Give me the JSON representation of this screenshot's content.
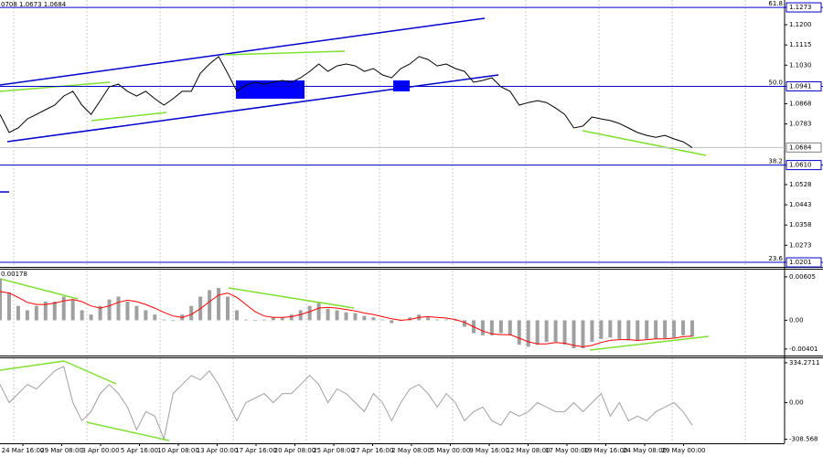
{
  "header_text": "0708 1.0673 1.0684",
  "chart_data": [
    {
      "type": "line",
      "name": "price",
      "values": [
        1.0823,
        1.0747,
        1.0766,
        1.0804,
        1.0823,
        1.0843,
        1.0862,
        1.09,
        1.092,
        1.0862,
        1.0823,
        1.0881,
        1.0939,
        1.095,
        1.092,
        1.09,
        1.092,
        1.0889,
        1.0862,
        1.0889,
        1.092,
        1.092,
        1.0996,
        1.1035,
        1.1066,
        1.0996,
        1.092,
        1.0946,
        1.0958,
        1.095,
        1.0958,
        1.0966,
        1.0958,
        1.0977,
        1.1004,
        1.1035,
        1.1004,
        1.1027,
        1.1035,
        1.1027,
        1.1004,
        1.1016,
        1.0989,
        1.0977,
        1.1016,
        1.1035,
        1.1066,
        1.1054,
        1.1027,
        1.1035,
        1.1016,
        1.1004,
        1.0958,
        1.0966,
        1.0977,
        1.0939,
        1.092,
        1.0862,
        1.0873,
        1.0881,
        1.0873,
        1.085,
        1.0823,
        1.0766,
        1.0774,
        1.0812,
        1.0804,
        1.0797,
        1.0785,
        1.0766,
        1.0747,
        1.0735,
        1.0727,
        1.0735,
        1.072,
        1.0708,
        1.0684
      ],
      "color": "#000000",
      "ylim": [
        1.0182,
        1.1304
      ],
      "yticks": [
        {
          "value": 1.12,
          "label": "1.1200"
        },
        1.1115,
        {
          "value": 1.103,
          "label": "1.1030"
        },
        1.0868,
        1.0783,
        1.0528,
        1.0443,
        1.0358,
        1.0273
      ],
      "levels": [
        {
          "ratio": "61.8",
          "value": 1.1273,
          "label": "1.1273"
        },
        {
          "ratio": "50.0",
          "value": 1.0941,
          "label": "1.0941"
        },
        {
          "ratio": "38.2",
          "value": 1.061,
          "label": "1.0610"
        },
        {
          "ratio": "23.6",
          "value": 1.0201,
          "label": "1.0201"
        }
      ],
      "level_color": "#0000cc",
      "current": {
        "value": 1.0684,
        "label": "1.0684"
      },
      "xtick_labels": [
        "24 Mar 16:00",
        "29 Mar 08:00",
        "3 Apr 00:00",
        "5 Apr 16:00",
        "10 Apr 08:00",
        "13 Apr 00:00",
        "17 Apr 16:00",
        "20 Apr 08:00",
        "25 Apr 08:00",
        "27 Apr 16:00",
        "2 May 08:00",
        "5 May 00:00",
        "9 May 16:00",
        "12 May 08:00",
        "17 May 00:00",
        "19 May 16:00",
        "24 May 08:00",
        "29 May 00:00"
      ]
    },
    {
      "type": "macd",
      "label": "0.00178",
      "series": [
        {
          "kind": "histogram",
          "color": "#a0a0a0",
          "values": [
            0.0058,
            0.0039,
            0.002,
            0.0014,
            0.002,
            0.0026,
            0.0026,
            0.0033,
            0.0029,
            0.0014,
            0.0008,
            0.002,
            0.0029,
            0.0033,
            0.0026,
            0.002,
            0.0014,
            0.0008,
            0.0001,
            -0.0001,
            0.0008,
            0.002,
            0.0033,
            0.0042,
            0.0045,
            0.0033,
            0.0014,
            0.0001,
            -0.0001,
            0.0001,
            0.0004,
            0.0004,
            0.0008,
            0.0014,
            0.002,
            0.0024,
            0.0016,
            0.0014,
            0.0011,
            0.001,
            0.0006,
            0.0004,
            0.0001,
            -0.0004,
            -0.0001,
            0.0004,
            0.0008,
            0.0004,
            0.0001,
            0.0001,
            -0.0001,
            -0.0009,
            -0.0018,
            -0.0021,
            -0.0021,
            -0.0018,
            -0.0021,
            -0.0034,
            -0.0037,
            -0.0034,
            -0.003,
            -0.003,
            -0.0034,
            -0.0039,
            -0.0039,
            -0.003,
            -0.0026,
            -0.0024,
            -0.0026,
            -0.0028,
            -0.0029,
            -0.0026,
            -0.0026,
            -0.0025,
            -0.0024,
            -0.0021,
            -0.0023
          ]
        },
        {
          "kind": "line",
          "color": "#ff0000",
          "values": [
            0.004,
            0.0038,
            0.0032,
            0.0025,
            0.0022,
            0.0022,
            0.0024,
            0.0027,
            0.0029,
            0.0026,
            0.002,
            0.0017,
            0.002,
            0.0025,
            0.0028,
            0.0026,
            0.0022,
            0.0017,
            0.0011,
            0.0006,
            0.0004,
            0.0008,
            0.0016,
            0.0026,
            0.0035,
            0.0038,
            0.0032,
            0.0022,
            0.0012,
            0.0006,
            0.0004,
            0.0004,
            0.0005,
            0.0008,
            0.0012,
            0.0017,
            0.0018,
            0.0017,
            0.0015,
            0.0013,
            0.001,
            0.0008,
            0.0005,
            0.0002,
            0,
            0.0001,
            0.0004,
            0.0005,
            0.0004,
            0.0003,
            0.0001,
            -0.0003,
            -0.0009,
            -0.0015,
            -0.0019,
            -0.002,
            -0.002,
            -0.0025,
            -0.003,
            -0.0033,
            -0.0033,
            -0.0031,
            -0.0032,
            -0.0035,
            -0.0037,
            -0.0035,
            -0.0031,
            -0.0028,
            -0.0027,
            -0.0027,
            -0.0028,
            -0.0027,
            -0.0026,
            -0.0026,
            -0.0025,
            -0.0023,
            -0.0022
          ]
        }
      ],
      "ylim": [
        -0.00492,
        0.00706
      ],
      "yticks": [
        0.00605,
        {
          "value": 0,
          "label": "0.00"
        },
        -0.00401
      ]
    },
    {
      "type": "cci",
      "color": "#a0a0a0",
      "values": [
        152,
        0,
        76,
        152,
        114,
        190,
        266,
        304,
        0,
        -152,
        -76,
        76,
        152,
        76,
        -38,
        -228,
        -76,
        -114,
        -304,
        76,
        152,
        228,
        190,
        266,
        152,
        0,
        -152,
        0,
        38,
        76,
        0,
        76,
        76,
        152,
        228,
        152,
        0,
        114,
        76,
        0,
        -76,
        76,
        0,
        -152,
        0,
        114,
        152,
        76,
        -38,
        76,
        0,
        -152,
        -76,
        -38,
        -152,
        -190,
        -76,
        -114,
        -76,
        0,
        -38,
        -76,
        -76,
        0,
        -76,
        0,
        76,
        -114,
        0,
        -152,
        -114,
        -152,
        -76,
        -38,
        0,
        -76,
        -190
      ],
      "ylim": [
        -342,
        372
      ],
      "yticks": [
        334.2711,
        {
          "value": 0,
          "label": "0.00"
        },
        {
          "value": -308.568,
          "label": "-308.568"
        }
      ]
    }
  ]
}
